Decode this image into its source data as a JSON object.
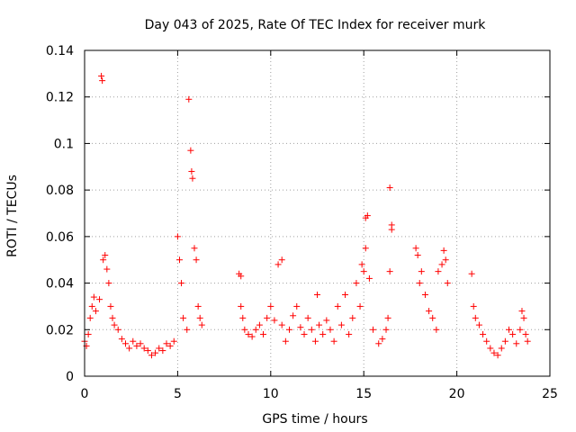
{
  "chart_data": {
    "type": "scatter",
    "title": "Day 043 of 2025, Rate Of TEC Index for receiver murk",
    "xlabel": "GPS time / hours",
    "ylabel": "ROTI / TECUs",
    "xlim": [
      0,
      25
    ],
    "ylim": [
      0,
      0.14
    ],
    "xticks": [
      "0",
      "5",
      "10",
      "15",
      "20",
      "25"
    ],
    "yticks": [
      "0",
      "0.02",
      "0.04",
      "0.06",
      "0.08",
      "0.1",
      "0.12",
      "0.14"
    ],
    "grid": true,
    "marker": "plus",
    "color": "#ff0000",
    "x": [
      0.0,
      0.1,
      0.2,
      0.3,
      0.4,
      0.5,
      0.6,
      0.8,
      0.9,
      1.0,
      1.1,
      1.2,
      1.3,
      1.4,
      1.5,
      1.6,
      1.8,
      2.0,
      2.2,
      2.4,
      2.6,
      2.8,
      3.0,
      3.2,
      3.4,
      3.6,
      3.8,
      4.0,
      4.2,
      4.4,
      4.6,
      4.8,
      5.0,
      5.1,
      5.2,
      5.3,
      5.5,
      5.6,
      5.7,
      5.75,
      5.8,
      5.9,
      6.0,
      6.1,
      6.2,
      6.3,
      8.3,
      8.4,
      8.5,
      8.6,
      8.8,
      9.0,
      9.2,
      9.4,
      9.6,
      9.8,
      10.0,
      10.2,
      10.4,
      10.6,
      10.8,
      11.0,
      11.2,
      11.4,
      11.6,
      11.8,
      12.0,
      12.2,
      12.4,
      12.6,
      12.8,
      13.0,
      13.2,
      13.4,
      13.6,
      13.8,
      14.0,
      14.2,
      14.4,
      14.6,
      14.8,
      15.0,
      15.1,
      15.2,
      15.3,
      15.5,
      15.8,
      16.0,
      16.2,
      16.3,
      16.4,
      16.5,
      17.8,
      17.9,
      18.0,
      18.1,
      18.3,
      18.5,
      18.7,
      18.9,
      19.0,
      19.2,
      19.3,
      19.4,
      19.5,
      20.8,
      20.9,
      21.0,
      21.2,
      21.4,
      21.6,
      21.8,
      22.0,
      22.2,
      22.4,
      22.6,
      22.8,
      23.0,
      23.2,
      23.4,
      23.5,
      23.6,
      23.7,
      23.8
    ],
    "y": [
      0.015,
      0.013,
      0.018,
      0.025,
      0.03,
      0.034,
      0.028,
      0.033,
      0.129,
      0.05,
      0.052,
      0.046,
      0.04,
      0.03,
      0.025,
      0.022,
      0.02,
      0.016,
      0.014,
      0.012,
      0.015,
      0.013,
      0.014,
      0.012,
      0.011,
      0.009,
      0.01,
      0.012,
      0.011,
      0.014,
      0.013,
      0.015,
      0.06,
      0.05,
      0.04,
      0.025,
      0.02,
      0.119,
      0.097,
      0.088,
      0.085,
      0.055,
      0.05,
      0.03,
      0.025,
      0.022,
      0.044,
      0.03,
      0.025,
      0.02,
      0.018,
      0.017,
      0.02,
      0.022,
      0.018,
      0.025,
      0.03,
      0.024,
      0.048,
      0.022,
      0.015,
      0.02,
      0.026,
      0.03,
      0.021,
      0.018,
      0.025,
      0.02,
      0.015,
      0.022,
      0.018,
      0.024,
      0.02,
      0.015,
      0.03,
      0.022,
      0.035,
      0.018,
      0.025,
      0.04,
      0.03,
      0.045,
      0.055,
      0.069,
      0.042,
      0.02,
      0.014,
      0.016,
      0.02,
      0.025,
      0.045,
      0.065,
      0.055,
      0.052,
      0.04,
      0.045,
      0.035,
      0.028,
      0.025,
      0.02,
      0.045,
      0.048,
      0.054,
      0.05,
      0.04,
      0.044,
      0.03,
      0.025,
      0.022,
      0.018,
      0.015,
      0.012,
      0.01,
      0.009,
      0.012,
      0.015,
      0.02,
      0.018,
      0.014,
      0.02,
      0.028,
      0.025,
      0.018,
      0.015
    ],
    "extra_x": [
      0.95,
      8.4,
      15.1,
      16.4,
      16.5,
      10.6,
      12.5,
      14.9
    ],
    "extra_y": [
      0.127,
      0.043,
      0.068,
      0.081,
      0.063,
      0.05,
      0.035,
      0.048
    ]
  }
}
